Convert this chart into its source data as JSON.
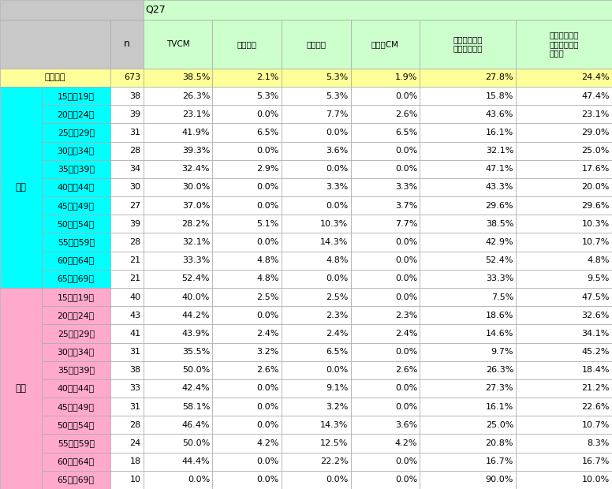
{
  "q_label": "Q27",
  "col_headers": [
    "n",
    "TVCM",
    "雑誌広告",
    "新聞広告",
    "ラジオCM",
    "パソコンで表\n示される広告",
    "スマートフォ\nンで表示され\nる広告"
  ],
  "row_labels_col2": [
    "",
    "15歳～19歳",
    "20歳～24歳",
    "25歳～29歳",
    "30歳～34歳",
    "35歳～39歳",
    "40歳～44歳",
    "45歳～49歳",
    "50歳～54歳",
    "55歳～59歳",
    "60歳～64歳",
    "65歳～69歳",
    "15歳～19歳",
    "20歳～24歳",
    "25歳～29歳",
    "30歳～34歳",
    "35歳～39歳",
    "40歳～44歳",
    "45歳～49歳",
    "50歳～54歳",
    "55歳～59歳",
    "60歳～64歳",
    "65歳～69歳"
  ],
  "n_values": [
    673,
    38,
    39,
    31,
    28,
    34,
    30,
    27,
    39,
    28,
    21,
    21,
    40,
    43,
    41,
    31,
    38,
    33,
    31,
    28,
    24,
    18,
    10
  ],
  "data": [
    [
      38.5,
      2.1,
      5.3,
      1.9,
      27.8,
      24.4
    ],
    [
      26.3,
      5.3,
      5.3,
      0.0,
      15.8,
      47.4
    ],
    [
      23.1,
      0.0,
      7.7,
      2.6,
      43.6,
      23.1
    ],
    [
      41.9,
      6.5,
      0.0,
      6.5,
      16.1,
      29.0
    ],
    [
      39.3,
      0.0,
      3.6,
      0.0,
      32.1,
      25.0
    ],
    [
      32.4,
      2.9,
      0.0,
      0.0,
      47.1,
      17.6
    ],
    [
      30.0,
      0.0,
      3.3,
      3.3,
      43.3,
      20.0
    ],
    [
      37.0,
      0.0,
      0.0,
      3.7,
      29.6,
      29.6
    ],
    [
      28.2,
      5.1,
      10.3,
      7.7,
      38.5,
      10.3
    ],
    [
      32.1,
      0.0,
      14.3,
      0.0,
      42.9,
      10.7
    ],
    [
      33.3,
      4.8,
      4.8,
      0.0,
      52.4,
      4.8
    ],
    [
      52.4,
      4.8,
      0.0,
      0.0,
      33.3,
      9.5
    ],
    [
      40.0,
      2.5,
      2.5,
      0.0,
      7.5,
      47.5
    ],
    [
      44.2,
      0.0,
      2.3,
      2.3,
      18.6,
      32.6
    ],
    [
      43.9,
      2.4,
      2.4,
      2.4,
      14.6,
      34.1
    ],
    [
      35.5,
      3.2,
      6.5,
      0.0,
      9.7,
      45.2
    ],
    [
      50.0,
      2.6,
      0.0,
      2.6,
      26.3,
      18.4
    ],
    [
      42.4,
      0.0,
      9.1,
      0.0,
      27.3,
      21.2
    ],
    [
      58.1,
      0.0,
      3.2,
      0.0,
      16.1,
      22.6
    ],
    [
      46.4,
      0.0,
      14.3,
      3.6,
      25.0,
      10.7
    ],
    [
      50.0,
      4.2,
      12.5,
      4.2,
      20.8,
      8.3
    ],
    [
      44.4,
      0.0,
      22.2,
      0.0,
      16.7,
      16.7
    ],
    [
      0.0,
      0.0,
      0.0,
      0.0,
      90.0,
      10.0
    ]
  ],
  "row_bg_colors": [
    "#ffff99",
    "#00ffff",
    "#00ffff",
    "#00ffff",
    "#00ffff",
    "#00ffff",
    "#00ffff",
    "#00ffff",
    "#00ffff",
    "#00ffff",
    "#00ffff",
    "#00ffff",
    "#ffaacc",
    "#ffaacc",
    "#ffaacc",
    "#ffaacc",
    "#ffaacc",
    "#ffaacc",
    "#ffaacc",
    "#ffaacc",
    "#ffaacc",
    "#ffaacc",
    "#ffaacc"
  ],
  "header_bg": "#ccffcc",
  "q27_bg": "#ccffcc",
  "gray_bg": "#c8c8c8",
  "male_bg": "#00ffff",
  "female_bg": "#ffaacc",
  "total_bg": "#ffff99",
  "white_bg": "#ffffff",
  "border_color": "#aaaaaa",
  "text_color": "#000000",
  "figsize": [
    7.76,
    6.2
  ],
  "dpi": 100
}
